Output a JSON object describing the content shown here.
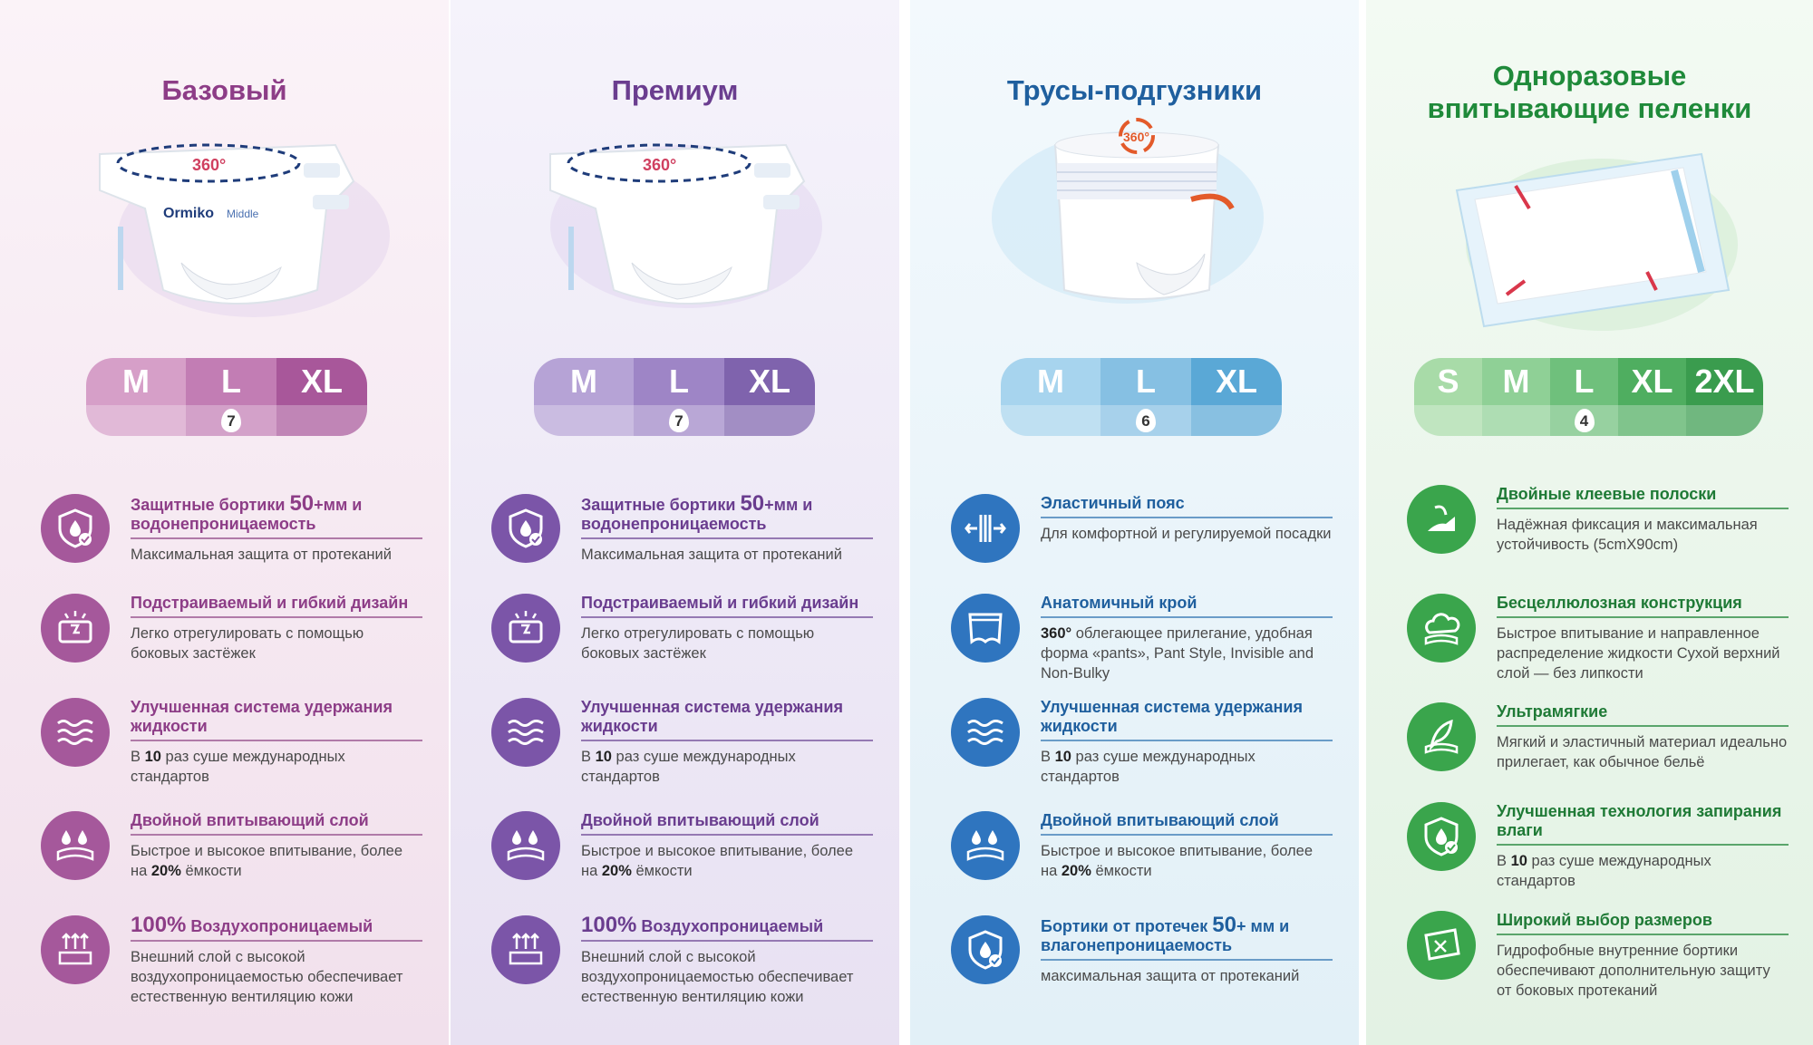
{
  "columns": [
    {
      "title": "Базовый",
      "brand_text": "Ormiko",
      "brand_sub": "Middle",
      "badge": "360°",
      "sizes": [
        "M",
        "L",
        "XL"
      ],
      "size_colors": [
        "#d69fc8",
        "#c27db4",
        "#a8579a"
      ],
      "drop_value": "7",
      "features": [
        {
          "icon": "shield-drop-icon",
          "title_a": "Защитные бортики ",
          "title_big": "50",
          "title_b": "+мм и водонепроницаемость",
          "desc": "Максимальная защита от протеканий"
        },
        {
          "icon": "adjust-icon",
          "title_a": "Подстраиваемый и гибкий дизайн",
          "desc": "Легко отрегулировать с помощью боковых застёжек"
        },
        {
          "icon": "waves-icon",
          "title_a": "Улучшенная система удержания жидкости",
          "desc_a": "В ",
          "desc_bold": "10",
          "desc_b": " раз суше международных стандартов"
        },
        {
          "icon": "drops-layer-icon",
          "title_a": "Двойной впитывающий слой",
          "desc_a": "Быстрое и высокое впитывание, более на ",
          "desc_bold": "20%",
          "desc_b": " ёмкости"
        },
        {
          "icon": "breathable-icon",
          "title_big": "100%",
          "title_a": " Воздухопроницаемый",
          "desc": "Внешний слой с высокой воздухопроницаемостью обеспечивает естественную вентиляцию кожи"
        }
      ]
    },
    {
      "title": "Премиум",
      "badge": "360°",
      "sizes": [
        "M",
        "L",
        "XL"
      ],
      "size_colors": [
        "#b6a3d6",
        "#9e85c6",
        "#7f63ad"
      ],
      "drop_value": "7",
      "features": [
        {
          "icon": "shield-drop-icon",
          "title_a": "Защитные бортики ",
          "title_big": "50",
          "title_b": "+мм и водонепроницаемость",
          "desc": "Максимальная защита от протеканий"
        },
        {
          "icon": "adjust-icon",
          "title_a": "Подстраиваемый и гибкий дизайн",
          "desc": "Легко отрегулировать с помощью боковых застёжек"
        },
        {
          "icon": "waves-icon",
          "title_a": "Улучшенная система удержания жидкости",
          "desc_a": "В ",
          "desc_bold": "10",
          "desc_b": " раз суше международных стандартов"
        },
        {
          "icon": "drops-layer-icon",
          "title_a": "Двойной впитывающий слой",
          "desc_a": "Быстрое и высокое впитывание, более на ",
          "desc_bold": "20%",
          "desc_b": " ёмкости"
        },
        {
          "icon": "breathable-icon",
          "title_big": "100%",
          "title_a": " Воздухопроницаемый",
          "desc": "Внешний слой с высокой воздухопроницаемостью обеспечивает естественную вентиляцию кожи"
        }
      ]
    },
    {
      "title": "Трусы-подгузники",
      "badge": "360°",
      "sizes": [
        "M",
        "L",
        "XL"
      ],
      "size_colors": [
        "#a7d4ee",
        "#86c0e3",
        "#5aa8d6"
      ],
      "drop_value": "6",
      "features": [
        {
          "icon": "elastic-belt-icon",
          "title_a": "Эластичный пояс",
          "desc": "Для комфортной и регулируемой посадки"
        },
        {
          "icon": "pants-icon",
          "title_a": "Анатомичный крой",
          "desc_bold_first": "360°",
          "desc_b": " облегающее прилегание, удобная форма «pants», Pant Style, Invisible and Non-Bulky"
        },
        {
          "icon": "waves-icon",
          "title_a": "Улучшенная система удержания жидкости",
          "desc_a": "В ",
          "desc_bold": "10",
          "desc_b": " раз суше международных стандартов"
        },
        {
          "icon": "drops-layer-icon",
          "title_a": "Двойной впитывающий слой",
          "desc_a": "Быстрое и высокое впитывание, более на ",
          "desc_bold": "20%",
          "desc_b": " ёмкости"
        },
        {
          "icon": "shield-drop-icon",
          "title_a": "Бортики от протечек ",
          "title_big": "50",
          "title_b": "+ мм и влагонепроницаемость",
          "desc": "максимальная защита от протеканий"
        }
      ]
    },
    {
      "title": "Одноразовые впитывающие пеленки",
      "sizes": [
        "S",
        "M",
        "L",
        "XL",
        "2XL"
      ],
      "size_colors": [
        "#a8dba8",
        "#8fd096",
        "#6fc07c",
        "#4fae60",
        "#3a9c4e"
      ],
      "drop_value": "4",
      "features": [
        {
          "icon": "adhesive-strip-icon",
          "title_a": "Двойные клеевые полоски",
          "desc": "Надёжная фиксация и максимальная устойчивость (5cmX90cm)"
        },
        {
          "icon": "cloud-icon",
          "title_a": "Бесцеллюлозная конструкция",
          "desc": "Быстрое впитывание и направленное распределение жидкости Сухой верхний слой — без липкости"
        },
        {
          "icon": "feather-icon",
          "title_a": "Ультрамягкие",
          "desc": "Мягкий и эластичный материал идеально прилегает, как обычное бельё"
        },
        {
          "icon": "shield-drop-icon",
          "title_a": "Улучшенная технология запирания влаги",
          "desc_a": "В ",
          "desc_bold": "10",
          "desc_b": " раз суше международных стандартов"
        },
        {
          "icon": "sizes-sheet-icon",
          "title_a": "Широкий выбор размеров",
          "desc": "Гидрофобные внутренние бортики обеспечивают дополнительную защиту от боковых протеканий"
        }
      ]
    }
  ]
}
